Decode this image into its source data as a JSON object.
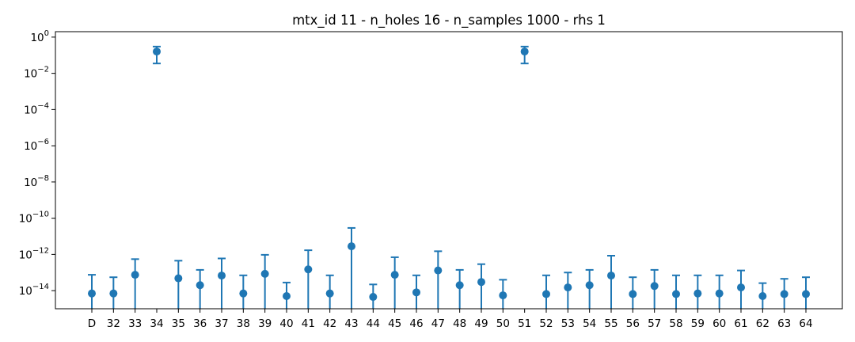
{
  "chart_data": {
    "type": "scatter",
    "title": "mtx_id 11 - n_holes 16 - n_samples 1000 - rhs 1",
    "xlabel": "",
    "ylabel": "",
    "yscale": "log",
    "ylim": [
      1e-15,
      2
    ],
    "yticks": [
      {
        "value": 1,
        "base": "10",
        "exp": "0"
      },
      {
        "value": 0.01,
        "base": "10",
        "exp": "−2"
      },
      {
        "value": 0.0001,
        "base": "10",
        "exp": "−4"
      },
      {
        "value": 1e-06,
        "base": "10",
        "exp": "−6"
      },
      {
        "value": 1e-08,
        "base": "10",
        "exp": "−8"
      },
      {
        "value": 1e-10,
        "base": "10",
        "exp": "−10"
      },
      {
        "value": 1e-12,
        "base": "10",
        "exp": "−12"
      },
      {
        "value": 1e-14,
        "base": "10",
        "exp": "−14"
      }
    ],
    "grid": false,
    "legend": "none",
    "color": "#1f77b4",
    "categories": [
      "D",
      "32",
      "33",
      "34",
      "35",
      "36",
      "37",
      "38",
      "39",
      "40",
      "41",
      "42",
      "43",
      "44",
      "45",
      "46",
      "47",
      "48",
      "49",
      "50",
      "51",
      "52",
      "53",
      "54",
      "55",
      "56",
      "57",
      "58",
      "59",
      "60",
      "61",
      "62",
      "63",
      "64"
    ],
    "points": [
      {
        "y": 7e-15,
        "upper": 7.5e-14
      },
      {
        "y": 7e-15,
        "upper": 5.5e-14
      },
      {
        "y": 7.5e-14,
        "upper": 5.5e-13
      },
      {
        "y": 0.16,
        "upper": 0.3,
        "lower": 0.035
      },
      {
        "y": 4.8e-14,
        "upper": 4.5e-13
      },
      {
        "y": 2e-14,
        "upper": 1.4e-13
      },
      {
        "y": 6.8e-14,
        "upper": 6e-13
      },
      {
        "y": 7e-15,
        "upper": 7e-14
      },
      {
        "y": 8.5e-14,
        "upper": 9.5e-13
      },
      {
        "y": 5e-15,
        "upper": 2.8e-14
      },
      {
        "y": 1.5e-13,
        "upper": 1.7e-12
      },
      {
        "y": 7e-15,
        "upper": 7e-14
      },
      {
        "y": 2.8e-12,
        "upper": 2.9e-11
      },
      {
        "y": 4.5e-15,
        "upper": 2.2e-14
      },
      {
        "y": 7.5e-14,
        "upper": 7e-13
      },
      {
        "y": 8e-15,
        "upper": 7e-14
      },
      {
        "y": 1.3e-13,
        "upper": 1.5e-12
      },
      {
        "y": 2e-14,
        "upper": 1.4e-13
      },
      {
        "y": 3e-14,
        "upper": 2.9e-13
      },
      {
        "y": 5.5e-15,
        "upper": 4e-14
      },
      {
        "y": 0.16,
        "upper": 0.3,
        "lower": 0.035
      },
      {
        "y": 6.5e-15,
        "upper": 7e-14
      },
      {
        "y": 1.5e-14,
        "upper": 1e-13
      },
      {
        "y": 2e-14,
        "upper": 1.4e-13
      },
      {
        "y": 6.8e-14,
        "upper": 8.5e-13
      },
      {
        "y": 6.5e-15,
        "upper": 5.5e-14
      },
      {
        "y": 1.8e-14,
        "upper": 1.4e-13
      },
      {
        "y": 6.5e-15,
        "upper": 7e-14
      },
      {
        "y": 7e-15,
        "upper": 7e-14
      },
      {
        "y": 7e-15,
        "upper": 7e-14
      },
      {
        "y": 1.5e-14,
        "upper": 1.3e-13
      },
      {
        "y": 5e-15,
        "upper": 2.6e-14
      },
      {
        "y": 6.5e-15,
        "upper": 4.5e-14
      },
      {
        "y": 6.5e-15,
        "upper": 5.5e-14
      }
    ]
  }
}
